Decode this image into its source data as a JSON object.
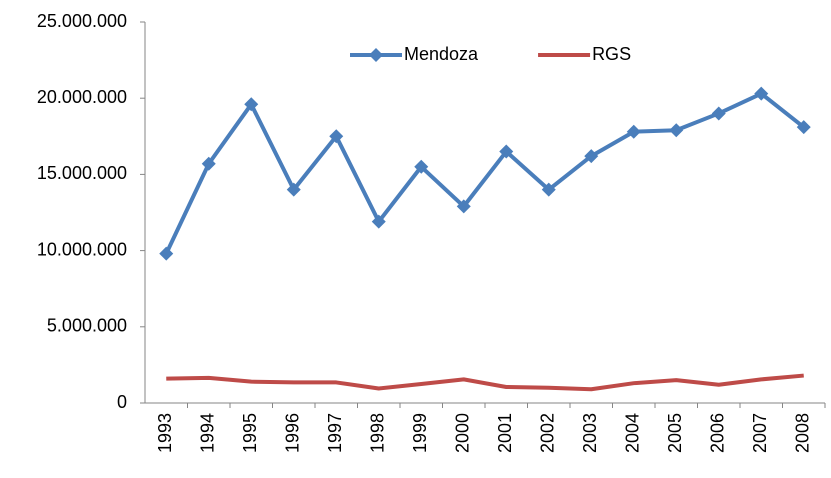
{
  "chart_data": {
    "type": "line",
    "categories": [
      "1993",
      "1994",
      "1995",
      "1996",
      "1997",
      "1998",
      "1999",
      "2000",
      "2001",
      "2002",
      "2003",
      "2004",
      "2005",
      "2006",
      "2007",
      "2008"
    ],
    "series": [
      {
        "name": "Mendoza",
        "color": "#4a7ebb",
        "marker": "diamond",
        "values": [
          9800000,
          15700000,
          19600000,
          14000000,
          17500000,
          11900000,
          15500000,
          12900000,
          16500000,
          14000000,
          16200000,
          17800000,
          17900000,
          19000000,
          20300000,
          18100000
        ]
      },
      {
        "name": "RGS",
        "color": "#be4b48",
        "values": [
          1600000,
          1650000,
          1400000,
          1350000,
          1350000,
          950000,
          1250000,
          1550000,
          1050000,
          1000000,
          900000,
          1300000,
          1500000,
          1200000,
          1550000,
          1800000
        ]
      }
    ],
    "ylim": [
      0,
      25000000
    ],
    "yticks": [
      0,
      {
        "value": 5000000,
        "label": "5.000.000"
      },
      {
        "value": 10000000,
        "label": "10.000.000"
      },
      {
        "value": 15000000,
        "label": "15.000.000"
      },
      {
        "value": 20000000,
        "label": "20.000.000"
      },
      {
        "value": 25000000,
        "label": "25.000.000"
      }
    ],
    "legend": "top"
  }
}
